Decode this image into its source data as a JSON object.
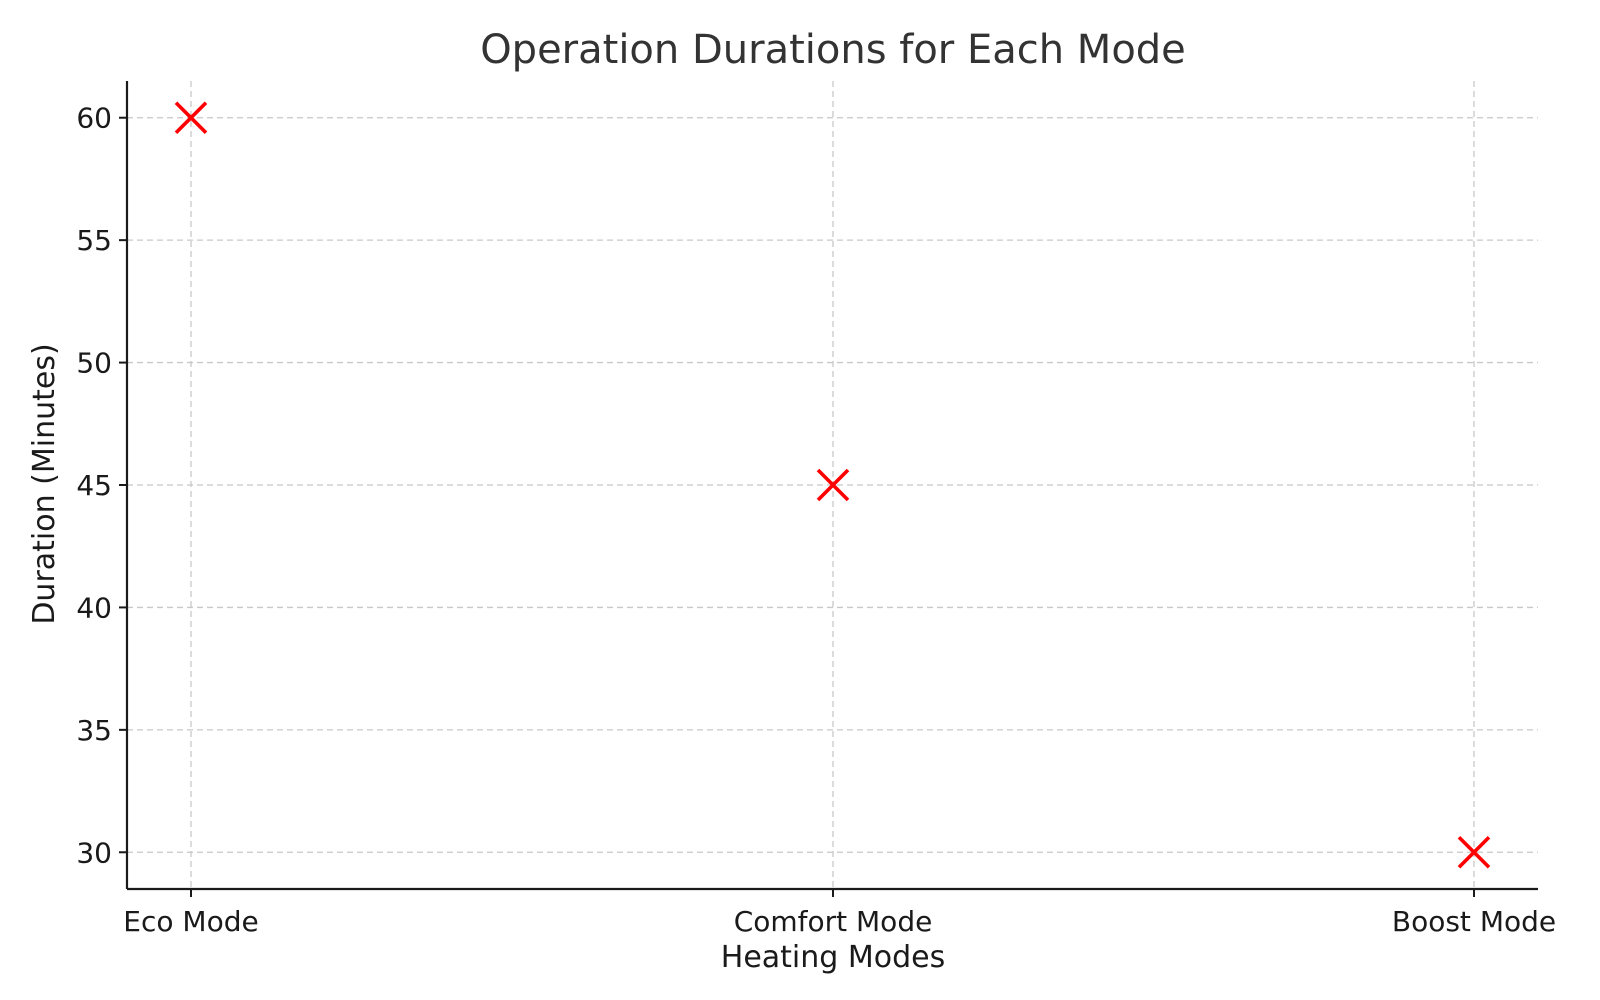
{
  "chart_data": {
    "type": "scatter",
    "title": "Operation Durations for Each Mode",
    "xlabel": "Heating Modes",
    "ylabel": "Duration (Minutes)",
    "categories": [
      "Eco Mode",
      "Comfort Mode",
      "Boost Mode"
    ],
    "series": [
      {
        "values": [
          60,
          45,
          30
        ],
        "marker": "x",
        "color": "#ff0000"
      }
    ],
    "ylim": [
      28.5,
      61.5
    ],
    "yticks": [
      30,
      35,
      40,
      45,
      50,
      55,
      60
    ],
    "grid": true
  }
}
